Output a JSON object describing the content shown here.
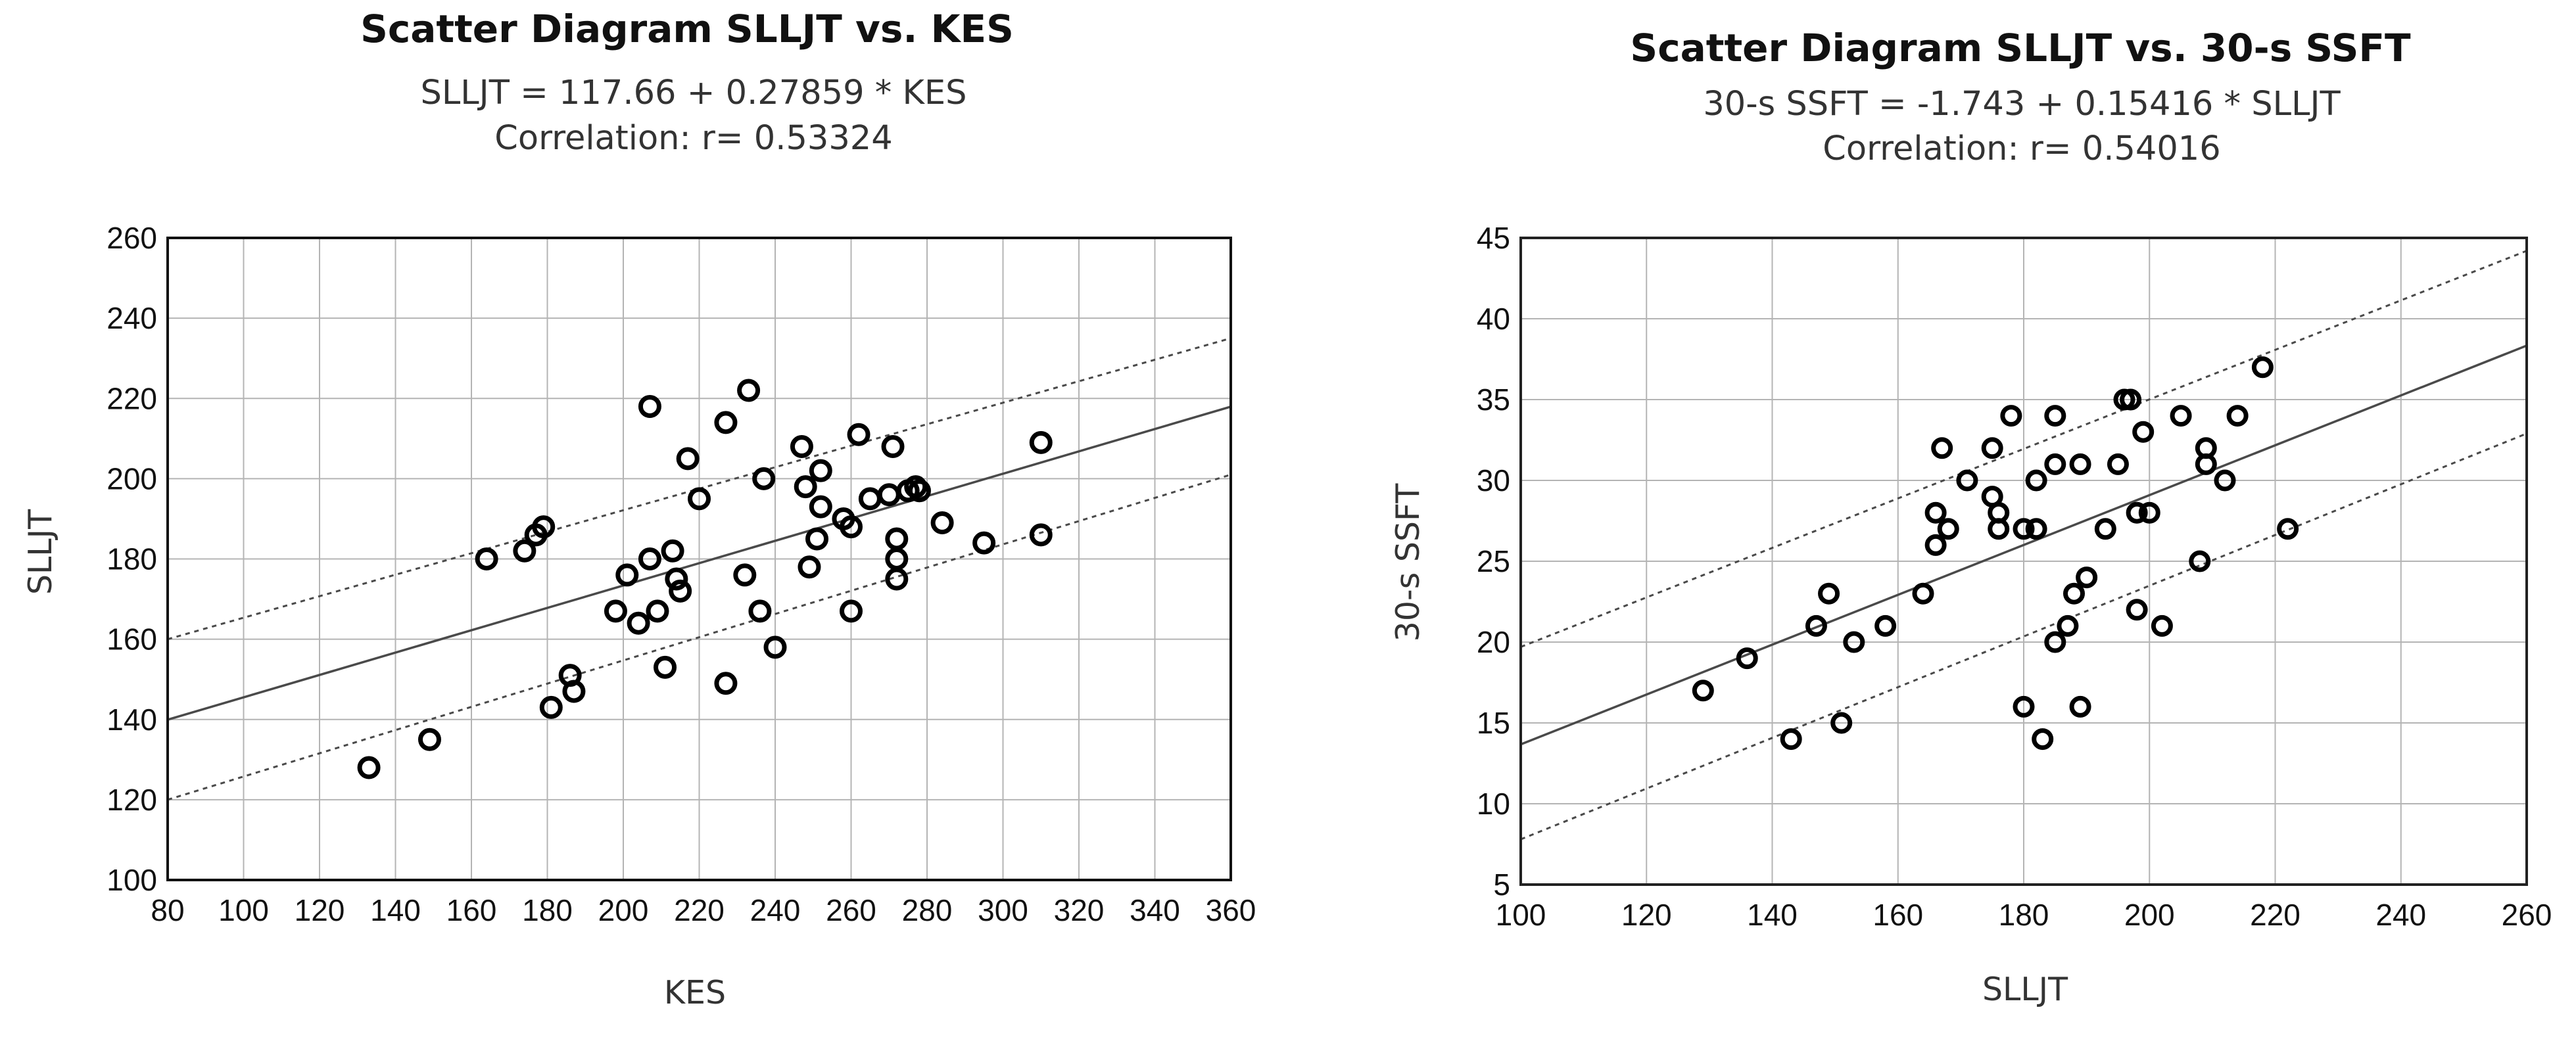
{
  "chart_data": [
    {
      "type": "scatter",
      "title": "Scatter Diagram SLLJT vs. KES",
      "equation": "SLLJT = 117.66 + 0.27859 * KES",
      "correlation_label": "Correlation: r= 0.53324",
      "xlabel": "KES",
      "ylabel": "SLLJT",
      "xlim": [
        80,
        360
      ],
      "ylim": [
        100,
        260
      ],
      "x_ticks": [
        "80",
        "100",
        "120",
        "140",
        "160",
        "180",
        "200",
        "220",
        "240",
        "260",
        "280",
        "300",
        "320",
        "340",
        "360"
      ],
      "y_ticks": [
        "100",
        "120",
        "140",
        "160",
        "180",
        "200",
        "220",
        "240",
        "260"
      ],
      "grid": true,
      "regression": {
        "intercept": 117.66,
        "slope": 0.27859
      },
      "confidence_band": {
        "upper": [
          [
            80,
            160
          ],
          [
            360,
            235
          ]
        ],
        "lower": [
          [
            80,
            120
          ],
          [
            360,
            201
          ]
        ]
      },
      "points": [
        [
          133,
          128
        ],
        [
          149,
          135
        ],
        [
          164,
          180
        ],
        [
          174,
          182
        ],
        [
          177,
          186
        ],
        [
          179,
          188
        ],
        [
          181,
          143
        ],
        [
          186,
          151
        ],
        [
          187,
          147
        ],
        [
          198,
          167
        ],
        [
          201,
          176
        ],
        [
          204,
          164
        ],
        [
          207,
          218
        ],
        [
          207,
          180
        ],
        [
          209,
          167
        ],
        [
          211,
          153
        ],
        [
          213,
          182
        ],
        [
          214,
          175
        ],
        [
          215,
          172
        ],
        [
          217,
          205
        ],
        [
          220,
          195
        ],
        [
          227,
          149
        ],
        [
          227,
          214
        ],
        [
          232,
          176
        ],
        [
          233,
          222
        ],
        [
          236,
          167
        ],
        [
          237,
          200
        ],
        [
          240,
          158
        ],
        [
          247,
          208
        ],
        [
          248,
          198
        ],
        [
          249,
          178
        ],
        [
          251,
          185
        ],
        [
          252,
          202
        ],
        [
          252,
          193
        ],
        [
          258,
          190
        ],
        [
          260,
          167
        ],
        [
          260,
          188
        ],
        [
          262,
          211
        ],
        [
          265,
          195
        ],
        [
          270,
          196
        ],
        [
          271,
          208
        ],
        [
          272,
          185
        ],
        [
          272,
          180
        ],
        [
          272,
          175
        ],
        [
          275,
          197
        ],
        [
          277,
          198
        ],
        [
          278,
          197
        ],
        [
          284,
          189
        ],
        [
          295,
          184
        ],
        [
          310,
          209
        ],
        [
          310,
          186
        ]
      ]
    },
    {
      "type": "scatter",
      "title": "Scatter Diagram SLLJT vs. 30-s SSFT",
      "equation": "30-s SSFT = -1.743 + 0.15416 * SLLJT",
      "correlation_label": "Correlation: r= 0.54016",
      "xlabel": "SLLJT",
      "ylabel": "30-s SSFT",
      "xlim": [
        100,
        260
      ],
      "ylim": [
        5,
        45
      ],
      "x_ticks": [
        "100",
        "120",
        "140",
        "160",
        "180",
        "200",
        "220",
        "240",
        "260"
      ],
      "y_ticks": [
        "5",
        "10",
        "15",
        "20",
        "25",
        "30",
        "35",
        "40",
        "45"
      ],
      "grid": true,
      "regression": {
        "intercept": -1.743,
        "slope": 0.15416
      },
      "confidence_band": {
        "upper": [
          [
            100,
            19.7
          ],
          [
            260,
            44.2
          ]
        ],
        "lower": [
          [
            100,
            7.8
          ],
          [
            260,
            32.9
          ]
        ]
      },
      "points": [
        [
          129,
          17
        ],
        [
          136,
          19
        ],
        [
          143,
          14
        ],
        [
          147,
          21
        ],
        [
          149,
          23
        ],
        [
          151,
          15
        ],
        [
          153,
          20
        ],
        [
          158,
          21
        ],
        [
          164,
          23
        ],
        [
          166,
          26
        ],
        [
          166,
          28
        ],
        [
          167,
          32
        ],
        [
          168,
          27
        ],
        [
          171,
          30
        ],
        [
          175,
          32
        ],
        [
          175,
          29
        ],
        [
          176,
          28
        ],
        [
          176,
          27
        ],
        [
          178,
          34
        ],
        [
          180,
          16
        ],
        [
          180,
          27
        ],
        [
          182,
          27
        ],
        [
          182,
          30
        ],
        [
          183,
          14
        ],
        [
          185,
          34
        ],
        [
          185,
          31
        ],
        [
          185,
          20
        ],
        [
          187,
          21
        ],
        [
          188,
          23
        ],
        [
          189,
          16
        ],
        [
          189,
          31
        ],
        [
          190,
          24
        ],
        [
          193,
          27
        ],
        [
          195,
          31
        ],
        [
          196,
          35
        ],
        [
          197,
          35
        ],
        [
          198,
          22
        ],
        [
          198,
          28
        ],
        [
          199,
          33
        ],
        [
          200,
          28
        ],
        [
          202,
          21
        ],
        [
          205,
          34
        ],
        [
          208,
          25
        ],
        [
          209,
          32
        ],
        [
          209,
          31
        ],
        [
          212,
          30
        ],
        [
          214,
          34
        ],
        [
          218,
          37
        ],
        [
          222,
          27
        ]
      ]
    }
  ]
}
